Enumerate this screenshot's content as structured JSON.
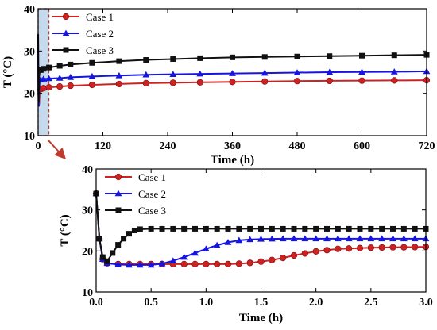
{
  "chart_data": [
    {
      "type": "line",
      "xlabel": "Time (h)",
      "ylabel": "T (°C)",
      "xlim": [
        0,
        720
      ],
      "ylim": [
        10,
        40
      ],
      "xticks": [
        0,
        120,
        240,
        360,
        480,
        600,
        720
      ],
      "yticks": [
        10,
        20,
        30,
        40
      ],
      "legend_position": "top-left",
      "highlight_region": [
        0,
        20
      ],
      "series": [
        {
          "name": "Case 1",
          "color": "#cc2222",
          "marker": "circle",
          "x": [
            0,
            0.5,
            1,
            2,
            3,
            5,
            10,
            20,
            40,
            60,
            100,
            150,
            200,
            250,
            300,
            360,
            420,
            480,
            540,
            600,
            660,
            720
          ],
          "y": [
            34,
            20,
            17,
            17.5,
            20.8,
            21.0,
            21.2,
            21.4,
            21.6,
            21.8,
            22.0,
            22.2,
            22.4,
            22.5,
            22.6,
            22.7,
            22.8,
            22.9,
            22.95,
            23.0,
            23.05,
            23.1
          ]
        },
        {
          "name": "Case 2",
          "color": "#1515dd",
          "marker": "triangle",
          "x": [
            0,
            0.5,
            1,
            2,
            3,
            5,
            10,
            20,
            40,
            60,
            100,
            150,
            200,
            250,
            300,
            360,
            420,
            480,
            540,
            600,
            660,
            720
          ],
          "y": [
            34,
            20,
            17,
            21,
            23.0,
            23.2,
            23.4,
            23.5,
            23.6,
            23.8,
            24.0,
            24.2,
            24.4,
            24.5,
            24.6,
            24.7,
            24.8,
            24.9,
            25.0,
            25.05,
            25.1,
            25.2
          ]
        },
        {
          "name": "Case 3",
          "color": "#111111",
          "marker": "square",
          "x": [
            0,
            0.5,
            1,
            2,
            3,
            5,
            10,
            20,
            40,
            60,
            100,
            150,
            200,
            250,
            300,
            360,
            420,
            480,
            540,
            600,
            660,
            720
          ],
          "y": [
            34,
            20,
            18,
            24,
            25.2,
            25.5,
            25.8,
            26.1,
            26.5,
            26.8,
            27.2,
            27.6,
            27.9,
            28.1,
            28.3,
            28.5,
            28.6,
            28.7,
            28.8,
            28.9,
            29.0,
            29.1
          ]
        }
      ]
    },
    {
      "type": "line",
      "xlabel": "Time (h)",
      "ylabel": "T (°C)",
      "xlim": [
        0,
        3
      ],
      "ylim": [
        10,
        40
      ],
      "xticks": [
        0,
        0.5,
        1.0,
        1.5,
        2.0,
        2.5,
        3.0
      ],
      "xtick_labels": [
        "0.0",
        "0.5",
        "1.0",
        "1.5",
        "2.0",
        "2.5",
        "3.0"
      ],
      "yticks": [
        10,
        20,
        30,
        40
      ],
      "legend_position": "top-left",
      "series": [
        {
          "name": "Case 1",
          "color": "#cc2222",
          "marker": "circle",
          "x": [
            0,
            0.03,
            0.06,
            0.1,
            0.2,
            0.3,
            0.4,
            0.5,
            0.6,
            0.7,
            0.8,
            0.9,
            1.0,
            1.1,
            1.2,
            1.3,
            1.4,
            1.5,
            1.6,
            1.7,
            1.8,
            1.9,
            2.0,
            2.1,
            2.2,
            2.3,
            2.4,
            2.5,
            2.6,
            2.7,
            2.8,
            2.9,
            3.0
          ],
          "y": [
            34,
            23,
            18,
            17,
            16.8,
            16.8,
            16.8,
            16.8,
            16.8,
            16.8,
            16.8,
            16.8,
            16.8,
            16.8,
            16.8,
            16.9,
            17.1,
            17.4,
            17.8,
            18.3,
            18.9,
            19.4,
            19.9,
            20.2,
            20.5,
            20.6,
            20.7,
            20.8,
            20.85,
            20.9,
            20.9,
            20.95,
            21.0
          ]
        },
        {
          "name": "Case 2",
          "color": "#1515dd",
          "marker": "triangle",
          "x": [
            0,
            0.03,
            0.06,
            0.1,
            0.2,
            0.3,
            0.4,
            0.5,
            0.6,
            0.7,
            0.8,
            0.9,
            1.0,
            1.1,
            1.2,
            1.3,
            1.4,
            1.5,
            1.6,
            1.7,
            1.8,
            1.9,
            2.0,
            2.1,
            2.2,
            2.3,
            2.4,
            2.5,
            2.6,
            2.7,
            2.8,
            2.9,
            3.0
          ],
          "y": [
            34,
            23,
            18,
            17,
            16.7,
            16.6,
            16.6,
            16.6,
            16.9,
            17.6,
            18.5,
            19.5,
            20.5,
            21.4,
            22.1,
            22.6,
            22.8,
            22.9,
            22.95,
            23.0,
            23.0,
            23.0,
            23.0,
            23.0,
            23.0,
            23.0,
            23.0,
            23.0,
            23.0,
            23.0,
            23.0,
            23.0,
            23.0
          ]
        },
        {
          "name": "Case 3",
          "color": "#111111",
          "marker": "square",
          "x": [
            0,
            0.03,
            0.06,
            0.1,
            0.15,
            0.2,
            0.25,
            0.3,
            0.35,
            0.4,
            0.5,
            0.6,
            0.7,
            0.8,
            0.9,
            1.0,
            1.1,
            1.2,
            1.3,
            1.4,
            1.5,
            1.6,
            1.7,
            1.8,
            1.9,
            2.0,
            2.1,
            2.2,
            2.3,
            2.4,
            2.5,
            2.6,
            2.7,
            2.8,
            2.9,
            3.0
          ],
          "y": [
            34,
            23,
            18.5,
            17.5,
            19.5,
            21.5,
            23.0,
            24.2,
            25.0,
            25.3,
            25.4,
            25.4,
            25.4,
            25.4,
            25.4,
            25.4,
            25.4,
            25.4,
            25.4,
            25.4,
            25.4,
            25.4,
            25.4,
            25.4,
            25.4,
            25.4,
            25.4,
            25.4,
            25.4,
            25.4,
            25.4,
            25.4,
            25.4,
            25.4,
            25.4,
            25.4
          ]
        }
      ]
    }
  ]
}
